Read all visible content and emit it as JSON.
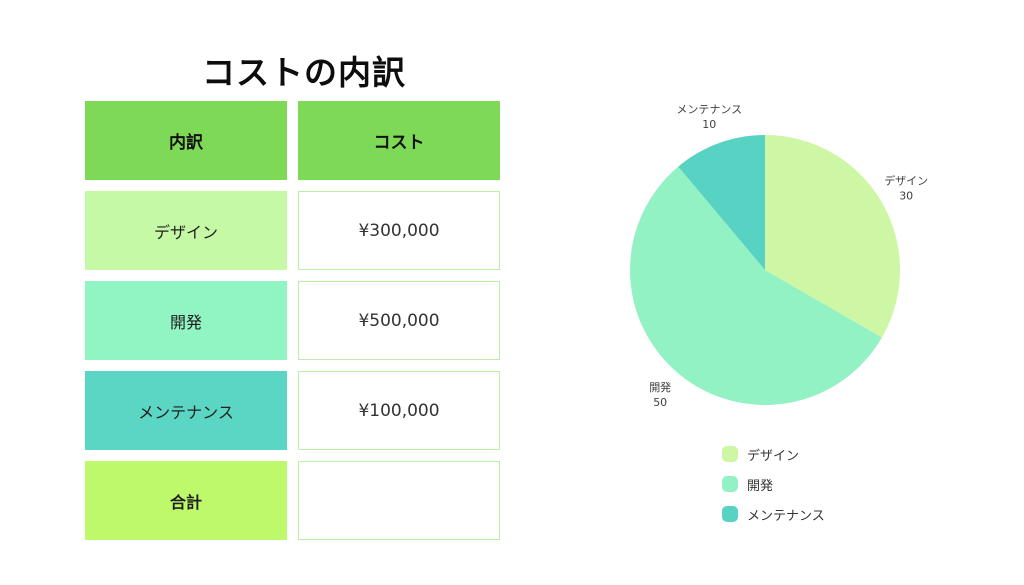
{
  "title": "コストの内訳",
  "table": {
    "header_labels": [
      "内訳",
      "コスト"
    ],
    "header_color": "#7ed957",
    "value_cell_border": "#bcefa6",
    "rows": [
      {
        "label": "デザイン",
        "value": "¥300,000",
        "color": "#c5f9a6",
        "bold": false
      },
      {
        "label": "開発",
        "value": "¥500,000",
        "color": "#90f5c3",
        "bold": false
      },
      {
        "label": "メンテナンス",
        "value": "¥100,000",
        "color": "#5bd6c4",
        "bold": false
      },
      {
        "label": "合計",
        "value": "",
        "color": "#bdf96b",
        "bold": true
      }
    ]
  },
  "chart_data": {
    "type": "pie",
    "categories": [
      "デザイン",
      "開発",
      "メンテナンス"
    ],
    "values": [
      30,
      50,
      10
    ],
    "colors": [
      "#cdf7a4",
      "#93f2c4",
      "#58d2c3"
    ],
    "start_angle_deg": 0,
    "direction": "clockwise",
    "outside_labels": [
      {
        "name": "デザイン",
        "value": "30"
      },
      {
        "name": "開発",
        "value": "50"
      },
      {
        "name": "メンテナンス",
        "value": "10"
      }
    ],
    "legend_position": "bottom-right",
    "legend_items": [
      "デザイン",
      "開発",
      "メンテナンス"
    ]
  }
}
